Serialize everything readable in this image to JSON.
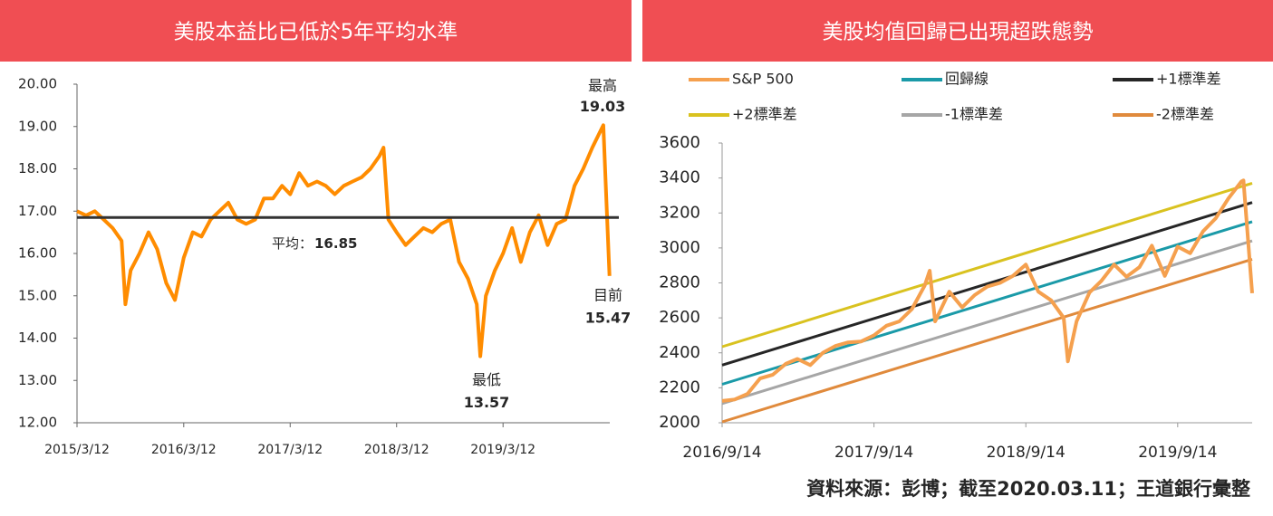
{
  "chart_data": [
    {
      "type": "line",
      "title": "美股本益比已低於5年平均水準",
      "color": "#ff8c00",
      "x": [
        "2015/3/12",
        "2015/4/12",
        "2015/5/12",
        "2015/6/12",
        "2015/7/12",
        "2015/8/12",
        "2015/8/25",
        "2015/9/12",
        "2015/10/12",
        "2015/11/12",
        "2015/12/12",
        "2016/1/12",
        "2016/2/11",
        "2016/3/12",
        "2016/4/12",
        "2016/5/12",
        "2016/6/12",
        "2016/7/12",
        "2016/8/12",
        "2016/9/12",
        "2016/10/12",
        "2016/11/12",
        "2016/12/12",
        "2017/1/12",
        "2017/2/12",
        "2017/3/12",
        "2017/4/12",
        "2017/5/12",
        "2017/6/12",
        "2017/7/12",
        "2017/8/12",
        "2017/9/12",
        "2017/10/12",
        "2017/11/12",
        "2017/12/12",
        "2018/1/12",
        "2018/1/26",
        "2018/2/12",
        "2018/3/12",
        "2018/4/12",
        "2018/5/12",
        "2018/6/12",
        "2018/7/12",
        "2018/8/12",
        "2018/9/12",
        "2018/10/12",
        "2018/11/12",
        "2018/12/12",
        "2018/12/24",
        "2019/1/12",
        "2019/2/12",
        "2019/3/12",
        "2019/4/12",
        "2019/5/12",
        "2019/6/12",
        "2019/7/12",
        "2019/8/12",
        "2019/9/12",
        "2019/10/12",
        "2019/11/12",
        "2019/12/12",
        "2020/1/12",
        "2020/2/19",
        "2020/2/28",
        "2020/3/11"
      ],
      "values": [
        17.0,
        16.9,
        17.0,
        16.8,
        16.6,
        16.3,
        14.8,
        15.6,
        16.0,
        16.5,
        16.1,
        15.3,
        14.9,
        15.9,
        16.5,
        16.4,
        16.8,
        17.0,
        17.2,
        16.8,
        16.7,
        16.8,
        17.3,
        17.3,
        17.6,
        17.4,
        17.9,
        17.6,
        17.7,
        17.6,
        17.4,
        17.6,
        17.7,
        17.8,
        18.0,
        18.3,
        18.5,
        16.8,
        16.5,
        16.2,
        16.4,
        16.6,
        16.5,
        16.7,
        16.8,
        15.8,
        15.4,
        14.8,
        13.57,
        15.0,
        15.6,
        16.0,
        16.6,
        15.8,
        16.5,
        16.9,
        16.2,
        16.7,
        16.8,
        17.6,
        18.0,
        18.5,
        19.03,
        17.5,
        15.47
      ],
      "xlim": [
        "2015/3/12",
        "2020/3/12"
      ],
      "xticks": [
        "2015/3/12",
        "2016/3/12",
        "2017/3/12",
        "2018/3/12",
        "2019/3/12"
      ],
      "ylim": [
        12,
        20
      ],
      "yticks": [
        {
          "value": 12,
          "label": "12.00"
        },
        {
          "value": 13,
          "label": "13.00"
        },
        {
          "value": 14,
          "label": "14.00"
        },
        {
          "value": 15,
          "label": "15.00"
        },
        {
          "value": 16,
          "label": "16.00"
        },
        {
          "value": 17,
          "label": "17.00"
        },
        {
          "value": 18,
          "label": "18.00"
        },
        {
          "value": 19,
          "label": "19.00"
        },
        {
          "value": 20,
          "label": "20.00"
        }
      ],
      "average": {
        "label": "平均：",
        "value": 16.85,
        "color": "#333333"
      },
      "annotations": [
        {
          "label": "最高",
          "value": 19.03
        },
        {
          "label": "最低",
          "value": 13.57
        },
        {
          "label": "目前",
          "value": 15.47
        }
      ]
    },
    {
      "type": "line",
      "title": "美股均值回歸已出現超跌態勢",
      "xlim": [
        "2016/9/14",
        "2020/3/11"
      ],
      "xticks": [
        "2016/9/14",
        "2017/9/14",
        "2018/9/14",
        "2019/9/14"
      ],
      "ylim": [
        2000,
        3600
      ],
      "yticks": [
        2000,
        2200,
        2400,
        2600,
        2800,
        3000,
        3200,
        3400,
        3600
      ],
      "legend": "top",
      "series": [
        {
          "name": "S&P 500",
          "color": "#f5a04e",
          "x": [
            "2016/9/14",
            "2016/10/14",
            "2016/11/14",
            "2016/12/14",
            "2017/1/14",
            "2017/2/14",
            "2017/3/14",
            "2017/4/14",
            "2017/5/14",
            "2017/6/14",
            "2017/7/14",
            "2017/8/14",
            "2017/9/14",
            "2017/10/14",
            "2017/11/14",
            "2017/12/14",
            "2018/1/14",
            "2018/1/26",
            "2018/2/8",
            "2018/3/14",
            "2018/4/14",
            "2018/5/14",
            "2018/6/14",
            "2018/7/14",
            "2018/8/14",
            "2018/9/14",
            "2018/10/14",
            "2018/11/14",
            "2018/12/14",
            "2018/12/24",
            "2019/1/14",
            "2019/2/14",
            "2019/3/14",
            "2019/4/14",
            "2019/5/14",
            "2019/6/14",
            "2019/7/14",
            "2019/8/14",
            "2019/9/14",
            "2019/10/14",
            "2019/11/14",
            "2019/12/14",
            "2020/1/14",
            "2020/2/14",
            "2020/2/19",
            "2020/3/11"
          ],
          "values": [
            2125,
            2133,
            2165,
            2253,
            2275,
            2337,
            2365,
            2330,
            2400,
            2440,
            2460,
            2465,
            2500,
            2555,
            2580,
            2650,
            2785,
            2870,
            2580,
            2750,
            2660,
            2730,
            2780,
            2800,
            2840,
            2905,
            2750,
            2700,
            2600,
            2351,
            2580,
            2745,
            2810,
            2905,
            2835,
            2890,
            3013,
            2840,
            3007,
            2970,
            3095,
            3168,
            3283,
            3380,
            3386,
            2741
          ]
        },
        {
          "name": "回歸線",
          "color": "#1a9aa8",
          "x": [
            "2016/9/14",
            "2020/3/11"
          ],
          "values": [
            2220,
            3150
          ]
        },
        {
          "name": "+1標準差",
          "color": "#262626",
          "x": [
            "2016/9/14",
            "2020/3/11"
          ],
          "values": [
            2330,
            3260
          ]
        },
        {
          "name": "+2標準差",
          "color": "#d9c21f",
          "x": [
            "2016/9/14",
            "2020/3/11"
          ],
          "values": [
            2435,
            3370
          ]
        },
        {
          "name": "-1標準差",
          "color": "#a6a6a6",
          "x": [
            "2016/9/14",
            "2020/3/11"
          ],
          "values": [
            2110,
            3040
          ]
        },
        {
          "name": "-2標準差",
          "color": "#e08a3c",
          "x": [
            "2016/9/14",
            "2020/3/11"
          ],
          "values": [
            2005,
            2935
          ]
        }
      ]
    }
  ],
  "source": "資料來源：彭博；截至2020.03.11；王道銀行彙整"
}
